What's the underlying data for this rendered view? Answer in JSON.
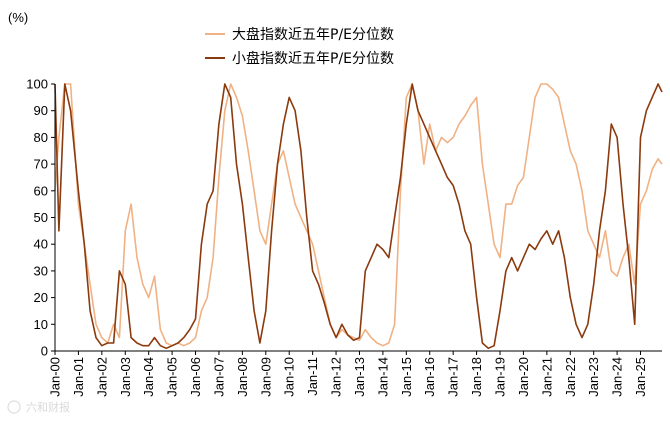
{
  "chart_data": {
    "type": "line",
    "unit_label": "(%)",
    "ylim": [
      0,
      100
    ],
    "y_ticks": [
      0,
      10,
      20,
      30,
      40,
      50,
      60,
      70,
      80,
      90,
      100
    ],
    "x_ticks": [
      "Jan-00",
      "Jan-01",
      "Jan-02",
      "Jan-03",
      "Jan-04",
      "Jan-05",
      "Jan-06",
      "Jan-07",
      "Jan-08",
      "Jan-09",
      "Jan-10",
      "Jan-11",
      "Jan-12",
      "Jan-13",
      "Jan-14",
      "Jan-15",
      "Jan-16",
      "Jan-17",
      "Jan-18",
      "Jan-19",
      "Jan-20",
      "Jan-21",
      "Jan-22",
      "Jan-23",
      "Jan-24",
      "Jan-25"
    ],
    "x_range": [
      "2000-01",
      "2025-12"
    ],
    "grid": false,
    "legend_position": "top-center",
    "series": [
      {
        "name": "大盘指数近五年P/E分位数",
        "color": "#f0b284",
        "x": [
          "2000-01",
          "2000-03",
          "2000-06",
          "2000-09",
          "2001-01",
          "2001-04",
          "2001-07",
          "2001-10",
          "2002-01",
          "2002-04",
          "2002-07",
          "2002-10",
          "2003-01",
          "2003-04",
          "2003-07",
          "2003-10",
          "2004-01",
          "2004-04",
          "2004-07",
          "2004-10",
          "2005-01",
          "2005-04",
          "2005-07",
          "2005-10",
          "2006-01",
          "2006-04",
          "2006-07",
          "2006-10",
          "2007-01",
          "2007-04",
          "2007-07",
          "2007-10",
          "2008-01",
          "2008-04",
          "2008-07",
          "2008-10",
          "2009-01",
          "2009-04",
          "2009-07",
          "2009-10",
          "2010-01",
          "2010-04",
          "2010-07",
          "2010-10",
          "2011-01",
          "2011-04",
          "2011-07",
          "2011-10",
          "2012-01",
          "2012-04",
          "2012-07",
          "2012-10",
          "2013-01",
          "2013-04",
          "2013-07",
          "2013-10",
          "2014-01",
          "2014-04",
          "2014-07",
          "2014-10",
          "2015-01",
          "2015-04",
          "2015-07",
          "2015-10",
          "2016-01",
          "2016-04",
          "2016-07",
          "2016-10",
          "2017-01",
          "2017-04",
          "2017-07",
          "2017-10",
          "2018-01",
          "2018-04",
          "2018-07",
          "2018-10",
          "2019-01",
          "2019-04",
          "2019-07",
          "2019-10",
          "2020-01",
          "2020-04",
          "2020-07",
          "2020-10",
          "2021-01",
          "2021-04",
          "2021-07",
          "2021-10",
          "2022-01",
          "2022-04",
          "2022-07",
          "2022-10",
          "2023-01",
          "2023-04",
          "2023-07",
          "2023-10",
          "2024-01",
          "2024-04",
          "2024-07",
          "2024-10",
          "2025-01",
          "2025-04",
          "2025-07",
          "2025-10",
          "2025-12"
        ],
        "values": [
          60,
          80,
          100,
          100,
          55,
          40,
          25,
          10,
          5,
          3,
          10,
          5,
          45,
          55,
          35,
          25,
          20,
          28,
          8,
          3,
          2,
          3,
          2,
          3,
          5,
          15,
          20,
          35,
          65,
          90,
          100,
          95,
          88,
          75,
          60,
          45,
          40,
          55,
          70,
          75,
          65,
          55,
          50,
          45,
          40,
          30,
          20,
          10,
          5,
          8,
          6,
          5,
          4,
          8,
          5,
          3,
          2,
          3,
          10,
          60,
          95,
          100,
          90,
          70,
          85,
          75,
          80,
          78,
          80,
          85,
          88,
          92,
          95,
          70,
          55,
          40,
          35,
          55,
          55,
          62,
          65,
          80,
          95,
          100,
          100,
          98,
          95,
          85,
          75,
          70,
          60,
          45,
          40,
          35,
          45,
          30,
          28,
          35,
          40,
          25,
          55,
          60,
          68,
          72,
          70
        ]
      },
      {
        "name": "小盘指数近五年P/E分位数",
        "color": "#8b3a0e",
        "x": [
          "2000-01",
          "2000-03",
          "2000-06",
          "2000-09",
          "2001-01",
          "2001-04",
          "2001-07",
          "2001-10",
          "2002-01",
          "2002-04",
          "2002-07",
          "2002-10",
          "2003-01",
          "2003-04",
          "2003-07",
          "2003-10",
          "2004-01",
          "2004-04",
          "2004-07",
          "2004-10",
          "2005-01",
          "2005-04",
          "2005-07",
          "2005-10",
          "2006-01",
          "2006-04",
          "2006-07",
          "2006-10",
          "2007-01",
          "2007-04",
          "2007-07",
          "2007-10",
          "2008-01",
          "2008-04",
          "2008-07",
          "2008-10",
          "2009-01",
          "2009-04",
          "2009-07",
          "2009-10",
          "2010-01",
          "2010-04",
          "2010-07",
          "2010-10",
          "2011-01",
          "2011-04",
          "2011-07",
          "2011-10",
          "2012-01",
          "2012-04",
          "2012-07",
          "2012-10",
          "2013-01",
          "2013-04",
          "2013-07",
          "2013-10",
          "2014-01",
          "2014-04",
          "2014-07",
          "2014-10",
          "2015-01",
          "2015-04",
          "2015-07",
          "2015-10",
          "2016-01",
          "2016-04",
          "2016-07",
          "2016-10",
          "2017-01",
          "2017-04",
          "2017-07",
          "2017-10",
          "2018-01",
          "2018-04",
          "2018-07",
          "2018-10",
          "2019-01",
          "2019-04",
          "2019-07",
          "2019-10",
          "2020-01",
          "2020-04",
          "2020-07",
          "2020-10",
          "2021-01",
          "2021-04",
          "2021-07",
          "2021-10",
          "2022-01",
          "2022-04",
          "2022-07",
          "2022-10",
          "2023-01",
          "2023-04",
          "2023-07",
          "2023-10",
          "2024-01",
          "2024-04",
          "2024-07",
          "2024-10",
          "2025-01",
          "2025-04",
          "2025-07",
          "2025-10",
          "2025-12"
        ],
        "values": [
          100,
          45,
          100,
          90,
          60,
          40,
          15,
          5,
          2,
          3,
          3,
          30,
          25,
          5,
          3,
          2,
          2,
          5,
          2,
          1,
          2,
          3,
          5,
          8,
          12,
          40,
          55,
          60,
          85,
          100,
          95,
          70,
          55,
          35,
          15,
          3,
          15,
          45,
          70,
          85,
          95,
          90,
          75,
          50,
          30,
          25,
          18,
          10,
          5,
          10,
          6,
          4,
          5,
          30,
          35,
          40,
          38,
          35,
          50,
          65,
          85,
          100,
          90,
          85,
          80,
          75,
          70,
          65,
          62,
          55,
          45,
          40,
          20,
          3,
          1,
          2,
          15,
          30,
          35,
          30,
          35,
          40,
          38,
          42,
          45,
          40,
          45,
          35,
          20,
          10,
          5,
          10,
          25,
          45,
          60,
          85,
          80,
          55,
          35,
          10,
          80,
          90,
          95,
          100,
          97
        ]
      }
    ],
    "watermark": "六和财报"
  }
}
